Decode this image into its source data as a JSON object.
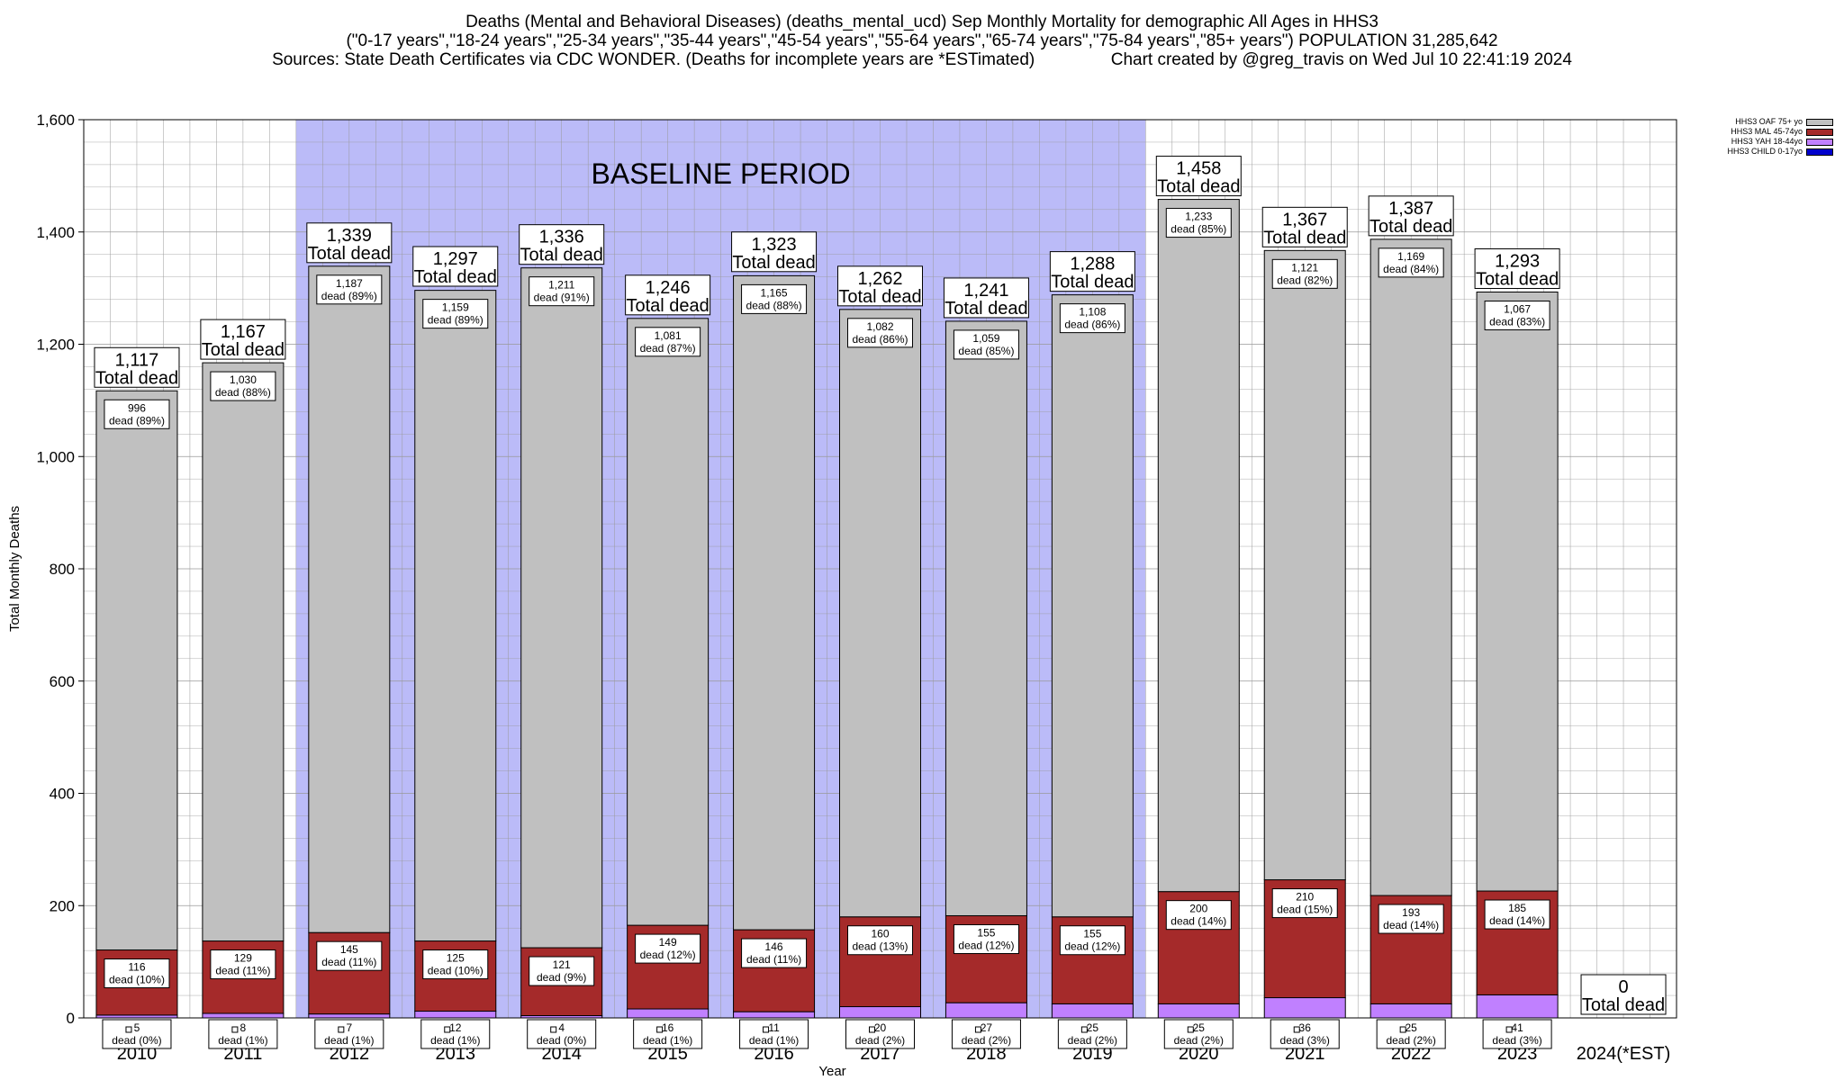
{
  "title_lines": [
    "Deaths (Mental and Behavioral Diseases) (deaths_mental_ucd) Sep Monthly Mortality for demographic All Ages in HHS3",
    "(\"0-17 years\",\"18-24 years\",\"25-34 years\",\"35-44 years\",\"45-54 years\",\"55-64 years\",\"65-74 years\",\"75-84 years\",\"85+ years\") POPULATION 31,285,642",
    "Sources: State Death Certificates via CDC WONDER. (Deaths for incomplete years are *ESTimated)                Chart created by @greg_travis on Wed Jul 10 22:41:19 2024"
  ],
  "chart_data": {
    "type": "bar",
    "stacked": true,
    "xlabel": "Year",
    "ylabel": "Total Monthly Deaths",
    "ylim": [
      0,
      1600
    ],
    "yticks": [
      0,
      200,
      400,
      600,
      800,
      1000,
      1200,
      1400,
      1600
    ],
    "ytick_labels": [
      "0",
      "200",
      "400",
      "600",
      "800",
      "1,000",
      "1,200",
      "1,400",
      "1,600"
    ],
    "grid": true,
    "legend_position": "top-right",
    "categories": [
      "2010",
      "2011",
      "2012",
      "2013",
      "2014",
      "2015",
      "2016",
      "2017",
      "2018",
      "2019",
      "2020",
      "2021",
      "2022",
      "2023",
      "2024(*EST)"
    ],
    "series": [
      {
        "name": "HHS3 CHILD 0-17yo",
        "color": "#0000cc",
        "values": [
          0,
          0,
          0,
          0,
          0,
          0,
          0,
          0,
          0,
          0,
          0,
          0,
          0,
          0,
          0
        ]
      },
      {
        "name": "HHS3 YAH 18-44yo",
        "color": "#c080ff",
        "values": [
          5,
          8,
          7,
          12,
          4,
          16,
          11,
          20,
          27,
          25,
          25,
          36,
          25,
          41,
          0
        ]
      },
      {
        "name": "HHS3 MAL 45-74yo",
        "color": "#a52a2a",
        "values": [
          116,
          129,
          145,
          125,
          121,
          149,
          146,
          160,
          155,
          155,
          200,
          210,
          193,
          185,
          0
        ]
      },
      {
        "name": "HHS3 OAF 75+ yo",
        "color": "#c0c0c0",
        "values": [
          996,
          1030,
          1187,
          1159,
          1211,
          1081,
          1165,
          1082,
          1059,
          1108,
          1233,
          1121,
          1169,
          1067,
          0
        ]
      }
    ],
    "pct_labels": {
      "HHS3 YAH 18-44yo": [
        "dead (0%)",
        "dead (1%)",
        "dead (1%)",
        "dead (1%)",
        "dead (0%)",
        "dead (1%)",
        "dead (1%)",
        "dead (2%)",
        "dead (2%)",
        "dead (2%)",
        "dead (2%)",
        "dead (3%)",
        "dead (2%)",
        "dead (3%)",
        ""
      ],
      "HHS3 MAL 45-74yo": [
        "dead (10%)",
        "dead (11%)",
        "dead (11%)",
        "dead (10%)",
        "dead (9%)",
        "dead (12%)",
        "dead (11%)",
        "dead (13%)",
        "dead (12%)",
        "dead (12%)",
        "dead (14%)",
        "dead (15%)",
        "dead (14%)",
        "dead (14%)",
        ""
      ],
      "HHS3 OAF 75+ yo": [
        "dead (89%)",
        "dead (88%)",
        "dead (89%)",
        "dead (89%)",
        "dead (91%)",
        "dead (87%)",
        "dead (88%)",
        "dead (86%)",
        "dead (85%)",
        "dead (86%)",
        "dead (85%)",
        "dead (82%)",
        "dead (84%)",
        "dead (83%)",
        ""
      ]
    },
    "totals": [
      1117,
      1167,
      1339,
      1297,
      1336,
      1246,
      1323,
      1262,
      1241,
      1288,
      1458,
      1367,
      1387,
      1293,
      0
    ],
    "total_labels": [
      "1,117",
      "1,167",
      "1,339",
      "1,297",
      "1,336",
      "1,246",
      "1,323",
      "1,262",
      "1,241",
      "1,288",
      "1,458",
      "1,367",
      "1,387",
      "1,293",
      "0"
    ],
    "total_suffix": "Total dead",
    "baseline": {
      "label": "BASELINE PERIOD",
      "from": "2012",
      "to": "2019",
      "color": "#bbbbf8"
    }
  }
}
